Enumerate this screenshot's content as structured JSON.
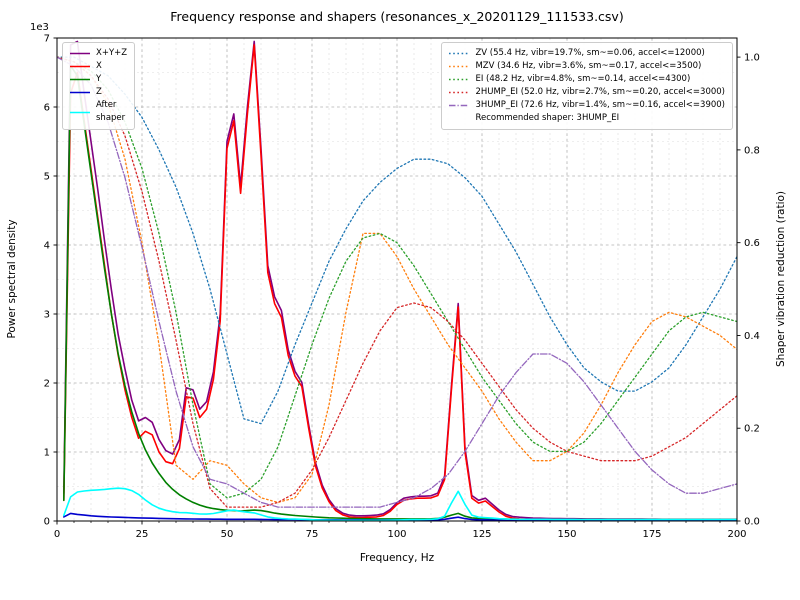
{
  "title": "Frequency response and shapers (resonances_x_20201129_111533.csv)",
  "axes": {
    "x": {
      "label": "Frequency, Hz",
      "min": 0,
      "max": 200,
      "tick_values": [
        0,
        25,
        50,
        75,
        100,
        125,
        150,
        175,
        200
      ],
      "tick_labels": [
        "0",
        "25",
        "50",
        "75",
        "100",
        "125",
        "150",
        "175",
        "200"
      ],
      "minor_step": 5
    },
    "y_left": {
      "label": "Power spectral density",
      "offset": "1e3",
      "min": 0,
      "max": 7000,
      "tick_values": [
        0,
        1000,
        2000,
        3000,
        4000,
        5000,
        6000,
        7000
      ],
      "tick_labels": [
        "0",
        "1",
        "2",
        "3",
        "4",
        "5",
        "6",
        "7"
      ],
      "minor_step": 500
    },
    "y_right": {
      "label": "Shaper vibration reduction (ratio)",
      "min": 0,
      "max": 1.0412,
      "tick_values": [
        0,
        0.2,
        0.4,
        0.6,
        0.8,
        1.0
      ],
      "tick_labels": [
        "0.0",
        "0.2",
        "0.4",
        "0.6",
        "0.8",
        "1.0"
      ]
    }
  },
  "legend_psd": {
    "entries": [
      {
        "label": "X+Y+Z",
        "color": "#800080",
        "style": "solid"
      },
      {
        "label": "X",
        "color": "#ff0000",
        "style": "solid"
      },
      {
        "label": "Y",
        "color": "#008000",
        "style": "solid"
      },
      {
        "label": "Z",
        "color": "#0000cd",
        "style": "solid"
      },
      {
        "label": "After\nshaper",
        "color": "#00ffff",
        "style": "solid"
      }
    ]
  },
  "legend_shapers": {
    "entries": [
      {
        "label": "ZV (55.4 Hz, vibr=19.7%, sm~=0.06, accel<=12000)",
        "color": "#1f77b4",
        "style": "dotted"
      },
      {
        "label": "MZV (34.6 Hz, vibr=3.6%, sm~=0.17, accel<=3500)",
        "color": "#ff7f0e",
        "style": "dotted"
      },
      {
        "label": "EI (48.2 Hz, vibr=4.8%, sm~=0.14, accel<=4300)",
        "color": "#2ca02c",
        "style": "dotted"
      },
      {
        "label": "2HUMP_EI (52.0 Hz, vibr=2.7%, sm~=0.20, accel<=3000)",
        "color": "#d62728",
        "style": "dotted"
      },
      {
        "label": "3HUMP_EI (72.6 Hz, vibr=1.4%, sm~=0.16, accel<=3900)",
        "color": "#9467bd",
        "style": "dashdot"
      }
    ],
    "footer": "Recommended shaper: 3HUMP_EI"
  },
  "chart_data": {
    "type": "line",
    "title": "Frequency response and shapers (resonances_x_20201129_111533.csv)",
    "xlabel": "Frequency, Hz",
    "ylabel_left": "Power spectral density",
    "ylabel_right": "Shaper vibration reduction (ratio)",
    "x_range": [
      0,
      200
    ],
    "y_left_range": [
      0,
      7000
    ],
    "y_right_range": [
      0,
      1.0412
    ],
    "grid": true,
    "recommended_shaper": "3HUMP_EI",
    "x_psd": [
      2,
      4,
      6,
      8,
      10,
      12,
      14,
      16,
      18,
      20,
      22,
      24,
      26,
      28,
      30,
      32,
      34,
      36,
      38,
      40,
      42,
      44,
      46,
      48,
      50,
      52,
      54,
      56,
      58,
      60,
      62,
      64,
      66,
      68,
      70,
      72,
      74,
      76,
      78,
      80,
      82,
      84,
      86,
      88,
      90,
      92,
      94,
      96,
      98,
      100,
      102,
      104,
      106,
      108,
      110,
      112,
      114,
      116,
      118,
      120,
      122,
      124,
      126,
      128,
      130,
      132,
      134,
      136,
      138,
      140,
      142,
      144,
      146,
      148,
      150,
      152,
      154,
      156,
      158,
      160,
      162,
      164,
      166,
      168,
      170,
      172,
      174,
      176,
      178,
      180,
      182,
      184,
      186,
      188,
      190,
      192,
      194,
      196,
      198,
      200
    ],
    "psd_series": [
      {
        "name": "X+Y+Z",
        "color": "#800080",
        "style": "solid",
        "values": [
          400,
          6900,
          6950,
          6200,
          5500,
          4800,
          4050,
          3350,
          2700,
          2200,
          1750,
          1450,
          1500,
          1430,
          1180,
          1020,
          970,
          1180,
          1930,
          1900,
          1620,
          1730,
          2160,
          3000,
          5500,
          5900,
          4850,
          6000,
          6950,
          5400,
          3700,
          3250,
          3050,
          2480,
          2170,
          2010,
          1400,
          850,
          520,
          310,
          180,
          115,
          85,
          75,
          75,
          80,
          85,
          105,
          165,
          265,
          330,
          350,
          360,
          360,
          365,
          405,
          650,
          1950,
          3150,
          1060,
          370,
          300,
          330,
          245,
          160,
          95,
          65,
          55,
          48,
          42,
          40,
          38,
          36,
          35,
          34,
          33,
          32,
          31,
          30,
          30,
          29,
          29,
          28,
          28,
          27,
          27,
          26,
          26,
          25,
          25,
          25,
          25,
          25,
          25,
          25,
          25,
          25,
          25,
          25,
          25
        ]
      },
      {
        "name": "X",
        "color": "#ff0000",
        "style": "solid",
        "values": [
          300,
          6200,
          6500,
          5800,
          5100,
          4400,
          3700,
          3000,
          2400,
          1900,
          1500,
          1200,
          1300,
          1250,
          1000,
          860,
          830,
          1050,
          1800,
          1780,
          1500,
          1620,
          2050,
          2900,
          5400,
          5800,
          4750,
          5900,
          6900,
          5300,
          3600,
          3150,
          2950,
          2400,
          2100,
          1950,
          1350,
          800,
          480,
          280,
          150,
          90,
          60,
          50,
          50,
          55,
          60,
          80,
          140,
          240,
          300,
          320,
          330,
          330,
          335,
          370,
          600,
          1900,
          3100,
          1000,
          330,
          260,
          290,
          210,
          130,
          70,
          40,
          30,
          25,
          20,
          18,
          16,
          15,
          14,
          13,
          12,
          12,
          11,
          11,
          10,
          10,
          10,
          10,
          10,
          10,
          10,
          10,
          10,
          10,
          10,
          10,
          10,
          10,
          10,
          10,
          10,
          10,
          10,
          10,
          10
        ]
      },
      {
        "name": "Y",
        "color": "#008000",
        "style": "solid",
        "values": [
          300,
          6600,
          6450,
          5750,
          5050,
          4350,
          3650,
          3000,
          2420,
          1960,
          1580,
          1270,
          1030,
          840,
          690,
          560,
          460,
          380,
          320,
          270,
          230,
          200,
          180,
          165,
          155,
          150,
          145,
          150,
          158,
          150,
          135,
          115,
          100,
          90,
          80,
          72,
          65,
          58,
          52,
          47,
          43,
          40,
          37,
          35,
          33,
          32,
          31,
          30,
          30,
          30,
          30,
          30,
          30,
          30,
          32,
          38,
          55,
          85,
          110,
          70,
          45,
          38,
          35,
          32,
          30,
          28,
          26,
          25,
          24,
          23,
          22,
          22,
          21,
          21,
          20,
          20,
          20,
          20,
          20,
          20,
          20,
          20,
          20,
          20,
          20,
          20,
          20,
          20,
          20,
          20,
          20,
          20,
          20,
          20,
          20,
          20,
          20,
          20,
          20,
          20
        ]
      },
      {
        "name": "Z",
        "color": "#0000cd",
        "style": "solid",
        "values": [
          60,
          110,
          95,
          85,
          75,
          68,
          62,
          58,
          55,
          52,
          48,
          45,
          42,
          40,
          38,
          35,
          33,
          32,
          30,
          29,
          28,
          27,
          26,
          26,
          25,
          25,
          24,
          24,
          24,
          23,
          22,
          21,
          21,
          20,
          20,
          19,
          19,
          18,
          18,
          17,
          17,
          16,
          16,
          16,
          15,
          15,
          15,
          15,
          15,
          15,
          15,
          15,
          15,
          15,
          16,
          18,
          25,
          40,
          55,
          35,
          22,
          18,
          16,
          15,
          14,
          13,
          12,
          12,
          11,
          11,
          10,
          10,
          10,
          10,
          10,
          10,
          10,
          10,
          10,
          10,
          10,
          10,
          10,
          10,
          10,
          10,
          10,
          10,
          10,
          10,
          10,
          10,
          10,
          10,
          10,
          10,
          10,
          10,
          10,
          10
        ]
      },
      {
        "name": "After shaper",
        "color": "#00ffff",
        "style": "solid",
        "values": [
          80,
          350,
          420,
          435,
          445,
          450,
          458,
          468,
          475,
          468,
          440,
          385,
          305,
          235,
          185,
          155,
          135,
          122,
          120,
          112,
          102,
          100,
          108,
          128,
          148,
          158,
          140,
          128,
          118,
          88,
          60,
          45,
          36,
          30,
          27,
          24,
          20,
          16,
          13,
          11,
          10,
          9,
          9,
          8,
          8,
          8,
          9,
          10,
          12,
          15,
          18,
          20,
          21,
          22,
          24,
          32,
          70,
          260,
          430,
          240,
          85,
          55,
          48,
          42,
          34,
          28,
          26,
          25,
          24,
          24,
          24,
          24,
          23,
          23,
          23,
          23,
          22,
          22,
          22,
          22,
          22,
          22,
          22,
          22,
          22,
          22,
          22,
          22,
          22,
          22,
          22,
          22,
          22,
          22,
          22,
          22,
          22,
          22,
          22,
          22
        ]
      }
    ],
    "x_shapers": [
      0,
      5,
      10,
      15,
      20,
      25,
      30,
      35,
      40,
      45,
      50,
      55,
      60,
      65,
      70,
      75,
      80,
      85,
      90,
      95,
      100,
      105,
      110,
      115,
      120,
      125,
      130,
      135,
      140,
      145,
      150,
      155,
      160,
      165,
      170,
      175,
      180,
      185,
      190,
      195,
      200
    ],
    "shaper_series": [
      {
        "name": "ZV",
        "freq_hz": 55.4,
        "vibr_pct": 19.7,
        "smoothing": 0.06,
        "max_accel": 12000,
        "color": "#1f77b4",
        "style": "dotted",
        "values": [
          1.0,
          1.0,
          0.98,
          0.96,
          0.92,
          0.87,
          0.8,
          0.72,
          0.62,
          0.5,
          0.36,
          0.22,
          0.21,
          0.28,
          0.38,
          0.47,
          0.56,
          0.63,
          0.69,
          0.73,
          0.76,
          0.78,
          0.78,
          0.77,
          0.74,
          0.7,
          0.64,
          0.58,
          0.51,
          0.44,
          0.38,
          0.33,
          0.3,
          0.28,
          0.28,
          0.3,
          0.33,
          0.38,
          0.44,
          0.5,
          0.57
        ]
      },
      {
        "name": "MZV",
        "freq_hz": 34.6,
        "vibr_pct": 3.6,
        "smoothing": 0.17,
        "max_accel": 3500,
        "color": "#ff7f0e",
        "style": "dotted",
        "values": [
          1.0,
          0.99,
          0.96,
          0.9,
          0.78,
          0.6,
          0.38,
          0.12,
          0.09,
          0.13,
          0.12,
          0.08,
          0.05,
          0.04,
          0.05,
          0.1,
          0.25,
          0.45,
          0.62,
          0.62,
          0.57,
          0.5,
          0.44,
          0.38,
          0.33,
          0.28,
          0.22,
          0.17,
          0.13,
          0.13,
          0.15,
          0.19,
          0.25,
          0.32,
          0.38,
          0.43,
          0.45,
          0.44,
          0.42,
          0.4,
          0.37
        ]
      },
      {
        "name": "EI",
        "freq_hz": 48.2,
        "vibr_pct": 4.8,
        "smoothing": 0.14,
        "max_accel": 4300,
        "color": "#2ca02c",
        "style": "dotted",
        "values": [
          1.0,
          0.99,
          0.97,
          0.93,
          0.86,
          0.76,
          0.62,
          0.45,
          0.25,
          0.08,
          0.05,
          0.06,
          0.09,
          0.16,
          0.27,
          0.38,
          0.48,
          0.56,
          0.61,
          0.62,
          0.6,
          0.55,
          0.49,
          0.43,
          0.37,
          0.31,
          0.26,
          0.21,
          0.17,
          0.15,
          0.15,
          0.17,
          0.21,
          0.26,
          0.31,
          0.36,
          0.41,
          0.44,
          0.45,
          0.44,
          0.43
        ]
      },
      {
        "name": "2HUMP_EI",
        "freq_hz": 52.0,
        "vibr_pct": 2.7,
        "smoothing": 0.2,
        "max_accel": 3000,
        "color": "#d62728",
        "style": "dotted",
        "values": [
          1.0,
          0.99,
          0.96,
          0.91,
          0.83,
          0.71,
          0.56,
          0.39,
          0.21,
          0.07,
          0.03,
          0.03,
          0.03,
          0.04,
          0.06,
          0.11,
          0.18,
          0.26,
          0.34,
          0.41,
          0.46,
          0.47,
          0.46,
          0.43,
          0.39,
          0.34,
          0.29,
          0.24,
          0.2,
          0.17,
          0.15,
          0.14,
          0.13,
          0.13,
          0.13,
          0.14,
          0.16,
          0.18,
          0.21,
          0.24,
          0.27
        ]
      },
      {
        "name": "3HUMP_EI",
        "freq_hz": 72.6,
        "vibr_pct": 1.4,
        "smoothing": 0.16,
        "max_accel": 3900,
        "color": "#9467bd",
        "style": "dashdot",
        "values": [
          1.0,
          0.98,
          0.94,
          0.86,
          0.74,
          0.59,
          0.43,
          0.28,
          0.16,
          0.09,
          0.08,
          0.06,
          0.04,
          0.03,
          0.03,
          0.03,
          0.03,
          0.03,
          0.03,
          0.03,
          0.04,
          0.05,
          0.07,
          0.1,
          0.15,
          0.21,
          0.27,
          0.32,
          0.36,
          0.36,
          0.34,
          0.3,
          0.25,
          0.2,
          0.15,
          0.11,
          0.08,
          0.06,
          0.06,
          0.07,
          0.08
        ]
      }
    ]
  }
}
